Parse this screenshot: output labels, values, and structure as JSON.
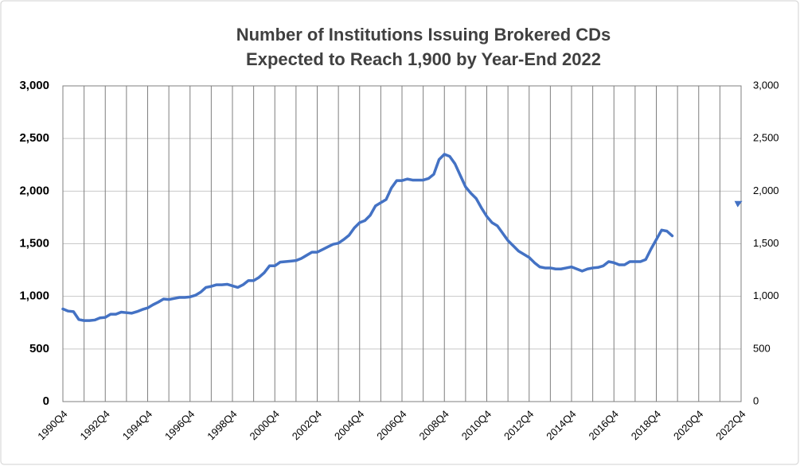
{
  "chart_data": {
    "type": "line",
    "title": "Number of Institutions Issuing Brokered CDs",
    "subtitle": "Expected to Reach 1,900 by Year-End 2022",
    "categories": [
      "1990Q4",
      null,
      null,
      null,
      null,
      null,
      null,
      null,
      "1992Q4",
      null,
      null,
      null,
      null,
      null,
      null,
      null,
      "1994Q4",
      null,
      null,
      null,
      null,
      null,
      null,
      null,
      "1996Q4",
      null,
      null,
      null,
      null,
      null,
      null,
      null,
      "1998Q4",
      null,
      null,
      null,
      null,
      null,
      null,
      null,
      "2000Q4",
      null,
      null,
      null,
      null,
      null,
      null,
      null,
      "2002Q4",
      null,
      null,
      null,
      null,
      null,
      null,
      null,
      "2004Q4",
      null,
      null,
      null,
      null,
      null,
      null,
      null,
      "2006Q4",
      null,
      null,
      null,
      null,
      null,
      null,
      null,
      "2008Q4",
      null,
      null,
      null,
      null,
      null,
      null,
      null,
      "2010Q4",
      null,
      null,
      null,
      null,
      null,
      null,
      null,
      "2012Q4",
      null,
      null,
      null,
      null,
      null,
      null,
      null,
      "2014Q4",
      null,
      null,
      null,
      null,
      null,
      null,
      null,
      "2016Q4",
      null,
      null,
      null,
      null,
      null,
      null,
      null,
      "2018Q4",
      null,
      null,
      null,
      null,
      null,
      null,
      null,
      "2020Q4",
      null,
      null,
      null,
      null,
      null,
      null,
      null,
      "2022Q4"
    ],
    "series": [
      {
        "color": "#4472c4",
        "dashed": false,
        "values": [
          880,
          860,
          855,
          780,
          770,
          770,
          775,
          795,
          800,
          830,
          830,
          850,
          845,
          840,
          855,
          875,
          890,
          920,
          945,
          975,
          970,
          980,
          990,
          990,
          995,
          1010,
          1040,
          1085,
          1095,
          1110,
          1110,
          1115,
          1100,
          1085,
          1110,
          1150,
          1150,
          1180,
          1225,
          1290,
          1290,
          1325,
          1330,
          1335,
          1340,
          1360,
          1390,
          1420,
          1420,
          1445,
          1470,
          1495,
          1505,
          1540,
          1580,
          1650,
          1700,
          1720,
          1770,
          1860,
          1890,
          1920,
          2030,
          2100,
          2100,
          2115,
          2105,
          2105,
          2105,
          2120,
          2160,
          2300,
          2350,
          2330,
          2260,
          2150,
          2040,
          1980,
          1930,
          1840,
          1760,
          1700,
          1670,
          1600,
          1530,
          1480,
          1430,
          1400,
          1370,
          1320,
          1280,
          1270,
          1270,
          1260,
          1260,
          1270,
          1280,
          1260,
          1240,
          1260,
          1270,
          1275,
          1290,
          1330,
          1320,
          1300,
          1300,
          1330,
          1330,
          1330,
          1350,
          1450,
          1540,
          1630,
          1620,
          1575,
          null,
          null,
          null,
          null,
          null,
          null,
          null,
          null,
          null,
          null,
          null,
          null,
          null
        ]
      },
      {
        "color": "#4472c4",
        "dashed": true,
        "values": [
          null,
          null,
          null,
          null,
          null,
          null,
          null,
          null,
          null,
          null,
          null,
          null,
          null,
          null,
          null,
          null,
          null,
          null,
          null,
          null,
          null,
          null,
          null,
          null,
          null,
          null,
          null,
          null,
          null,
          null,
          null,
          null,
          null,
          null,
          null,
          null,
          null,
          null,
          null,
          null,
          null,
          null,
          null,
          null,
          null,
          null,
          null,
          null,
          null,
          null,
          null,
          null,
          null,
          null,
          null,
          null,
          null,
          null,
          null,
          null,
          null,
          null,
          null,
          null,
          null,
          null,
          null,
          null,
          null,
          null,
          null,
          null,
          null,
          null,
          null,
          null,
          null,
          null,
          null,
          null,
          null,
          null,
          null,
          null,
          null,
          null,
          null,
          null,
          null,
          null,
          null,
          null,
          null,
          null,
          null,
          null,
          null,
          null,
          null,
          null,
          null,
          null,
          null,
          null,
          null,
          null,
          null,
          null,
          null,
          null,
          null,
          null,
          null,
          null,
          null,
          1575,
          null,
          null,
          null,
          null,
          null,
          null,
          null,
          null,
          null,
          null,
          null,
          null,
          1900
        ]
      }
    ],
    "ylim": [
      0,
      3000
    ],
    "yticks": [
      0,
      500,
      {
        "value": 1000,
        "label": "1,000"
      },
      {
        "value": 1500,
        "label": "1,500"
      },
      {
        "value": 2000,
        "label": "2,000"
      },
      {
        "value": 2500,
        "label": "2,500"
      },
      {
        "value": 3000,
        "label": "3,000"
      }
    ],
    "y2lim": [
      0,
      3000
    ],
    "y2ticks": [
      0,
      500,
      {
        "value": 1000,
        "label": "1,000"
      },
      {
        "value": 1500,
        "label": "1,500"
      },
      {
        "value": 2000,
        "label": "2,000"
      },
      {
        "value": 2500,
        "label": "2,500"
      },
      {
        "value": 3000,
        "label": "3,000"
      }
    ],
    "grid": true
  }
}
